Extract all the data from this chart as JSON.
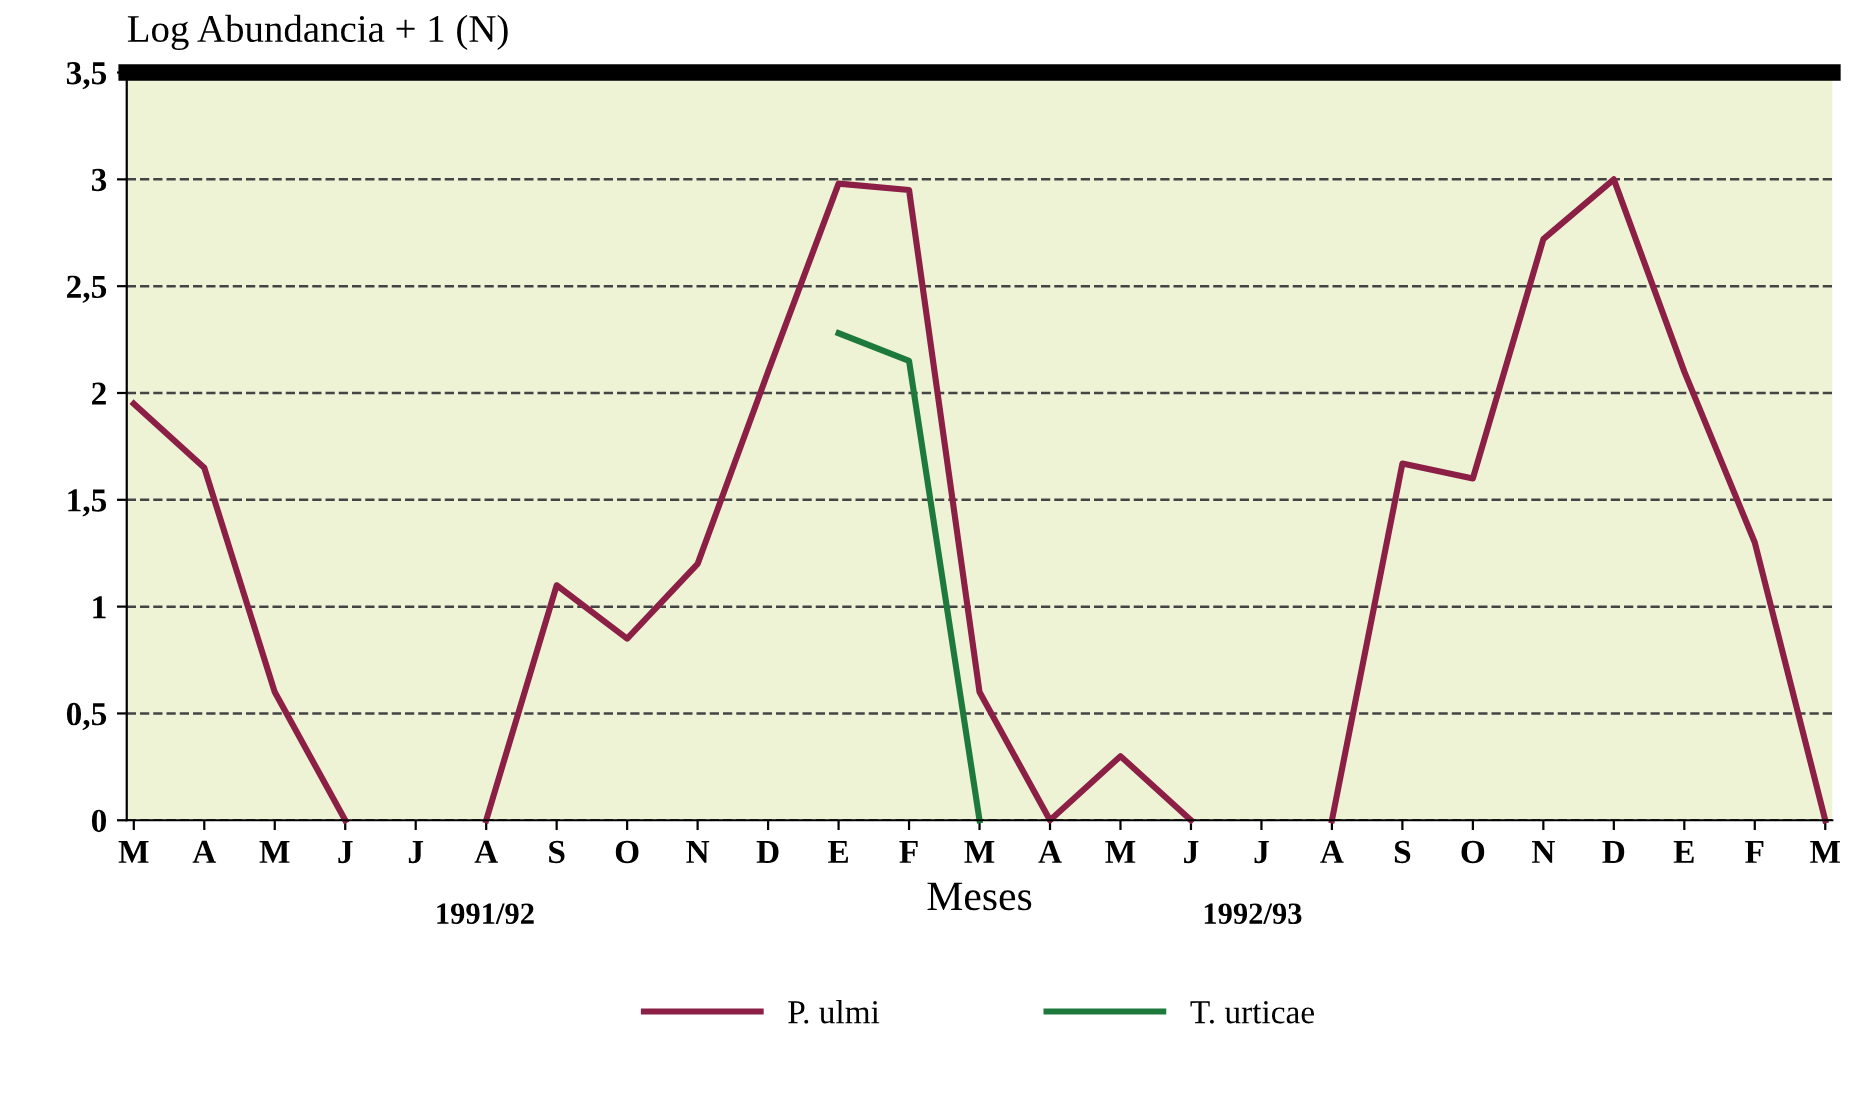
{
  "chart_data": {
    "type": "line",
    "ylabel": "Log Abundancia + 1 (N)",
    "xlabel": "Meses",
    "categories": [
      "M",
      "A",
      "M",
      "J",
      "J",
      "A",
      "S",
      "O",
      "N",
      "D",
      "E",
      "F",
      "M",
      "A",
      "M",
      "J",
      "J",
      "A",
      "S",
      "O",
      "N",
      "D",
      "E",
      "F",
      "M"
    ],
    "series": [
      {
        "name": "P. ulmi",
        "color": "#8c1f45",
        "values": [
          1.95,
          1.65,
          0.6,
          0,
          null,
          0,
          1.1,
          0.85,
          1.2,
          2.1,
          2.98,
          2.95,
          0.6,
          0,
          0.3,
          0,
          null,
          0,
          1.67,
          1.6,
          2.72,
          3.0,
          2.1,
          1.3,
          0
        ]
      },
      {
        "name": "T. urticae",
        "color": "#1e7a3c",
        "values": [
          null,
          null,
          null,
          null,
          null,
          null,
          null,
          null,
          null,
          null,
          2.28,
          2.15,
          0,
          null,
          null,
          null,
          null,
          null,
          null,
          null,
          null,
          null,
          null,
          null,
          null
        ]
      }
    ],
    "ylim": [
      0,
      3.5
    ],
    "yticks": [
      0,
      {
        "value": 0.5,
        "label": "0,5"
      },
      1,
      {
        "value": 1.5,
        "label": "1,5"
      },
      2,
      {
        "value": 2.5,
        "label": "2,5"
      },
      3,
      {
        "value": 3.5,
        "label": "3,5"
      }
    ],
    "grid": "y",
    "legend": "bottom",
    "marker": "none",
    "line_style": "solid",
    "annotations": [
      "1991/92",
      "1992/93"
    ]
  }
}
